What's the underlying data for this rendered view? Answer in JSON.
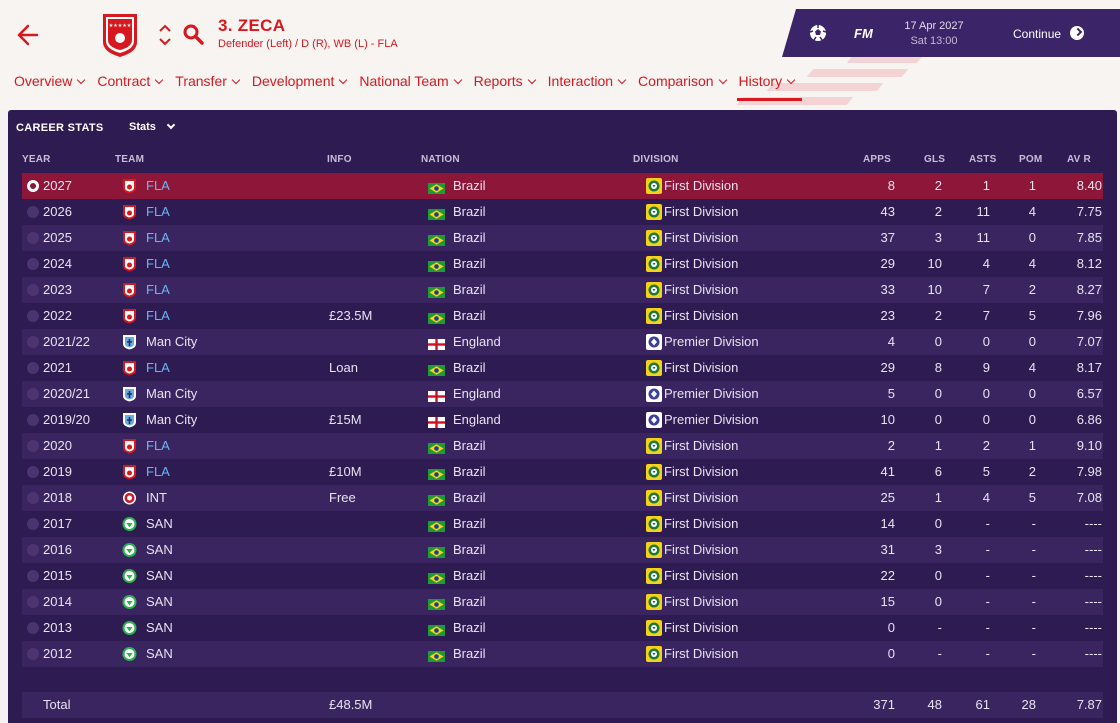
{
  "header": {
    "player_name": "3. ZECA",
    "player_position": "Defender (Left) / D (R), WB (L) - FLA"
  },
  "topbar": {
    "brand": "FM",
    "date": "17 Apr 2027",
    "time": "Sat 13:00",
    "continue_label": "Continue"
  },
  "nav": [
    {
      "label": "Overview"
    },
    {
      "label": "Contract"
    },
    {
      "label": "Transfer"
    },
    {
      "label": "Development"
    },
    {
      "label": "National Team"
    },
    {
      "label": "Reports"
    },
    {
      "label": "Interaction"
    },
    {
      "label": "Comparison"
    },
    {
      "label": "History"
    }
  ],
  "panel": {
    "title": "CAREER STATS",
    "dropdown_label": "Stats"
  },
  "columns": {
    "year": "YEAR",
    "team": "TEAM",
    "info": "INFO",
    "nation": "NATION",
    "division": "DIVISION",
    "apps": "APPS",
    "gls": "GLS",
    "asts": "ASTS",
    "pom": "POM",
    "avr": "AV R"
  },
  "rows": [
    {
      "year": "2027",
      "team": "FLA",
      "info": "",
      "nation": "Brazil",
      "division": "First Division",
      "apps": "8",
      "gls": "2",
      "asts": "1",
      "pom": "1",
      "avr": "8.40"
    },
    {
      "year": "2026",
      "team": "FLA",
      "info": "",
      "nation": "Brazil",
      "division": "First Division",
      "apps": "43",
      "gls": "2",
      "asts": "11",
      "pom": "4",
      "avr": "7.75"
    },
    {
      "year": "2025",
      "team": "FLA",
      "info": "",
      "nation": "Brazil",
      "division": "First Division",
      "apps": "37",
      "gls": "3",
      "asts": "11",
      "pom": "0",
      "avr": "7.85"
    },
    {
      "year": "2024",
      "team": "FLA",
      "info": "",
      "nation": "Brazil",
      "division": "First Division",
      "apps": "29",
      "gls": "10",
      "asts": "4",
      "pom": "4",
      "avr": "8.12"
    },
    {
      "year": "2023",
      "team": "FLA",
      "info": "",
      "nation": "Brazil",
      "division": "First Division",
      "apps": "33",
      "gls": "10",
      "asts": "7",
      "pom": "2",
      "avr": "8.27"
    },
    {
      "year": "2022",
      "team": "FLA",
      "info": "£23.5M",
      "nation": "Brazil",
      "division": "First Division",
      "apps": "23",
      "gls": "2",
      "asts": "7",
      "pom": "5",
      "avr": "7.96"
    },
    {
      "year": "2021/22",
      "team": "Man City",
      "info": "",
      "nation": "England",
      "division": "Premier Division",
      "apps": "4",
      "gls": "0",
      "asts": "0",
      "pom": "0",
      "avr": "7.07"
    },
    {
      "year": "2021",
      "team": "FLA",
      "info": "Loan",
      "nation": "Brazil",
      "division": "First Division",
      "apps": "29",
      "gls": "8",
      "asts": "9",
      "pom": "4",
      "avr": "8.17"
    },
    {
      "year": "2020/21",
      "team": "Man City",
      "info": "",
      "nation": "England",
      "division": "Premier Division",
      "apps": "5",
      "gls": "0",
      "asts": "0",
      "pom": "0",
      "avr": "6.57"
    },
    {
      "year": "2019/20",
      "team": "Man City",
      "info": "£15M",
      "nation": "England",
      "division": "Premier Division",
      "apps": "10",
      "gls": "0",
      "asts": "0",
      "pom": "0",
      "avr": "6.86"
    },
    {
      "year": "2020",
      "team": "FLA",
      "info": "",
      "nation": "Brazil",
      "division": "First Division",
      "apps": "2",
      "gls": "1",
      "asts": "2",
      "pom": "1",
      "avr": "9.10"
    },
    {
      "year": "2019",
      "team": "FLA",
      "info": "£10M",
      "nation": "Brazil",
      "division": "First Division",
      "apps": "41",
      "gls": "6",
      "asts": "5",
      "pom": "2",
      "avr": "7.98"
    },
    {
      "year": "2018",
      "team": "INT",
      "info": "Free",
      "nation": "Brazil",
      "division": "First Division",
      "apps": "25",
      "gls": "1",
      "asts": "4",
      "pom": "5",
      "avr": "7.08"
    },
    {
      "year": "2017",
      "team": "SAN",
      "info": "",
      "nation": "Brazil",
      "division": "First Division",
      "apps": "14",
      "gls": "0",
      "asts": "-",
      "pom": "-",
      "avr": "----"
    },
    {
      "year": "2016",
      "team": "SAN",
      "info": "",
      "nation": "Brazil",
      "division": "First Division",
      "apps": "31",
      "gls": "3",
      "asts": "-",
      "pom": "-",
      "avr": "----"
    },
    {
      "year": "2015",
      "team": "SAN",
      "info": "",
      "nation": "Brazil",
      "division": "First Division",
      "apps": "22",
      "gls": "0",
      "asts": "-",
      "pom": "-",
      "avr": "----"
    },
    {
      "year": "2014",
      "team": "SAN",
      "info": "",
      "nation": "Brazil",
      "division": "First Division",
      "apps": "15",
      "gls": "0",
      "asts": "-",
      "pom": "-",
      "avr": "----"
    },
    {
      "year": "2013",
      "team": "SAN",
      "info": "",
      "nation": "Brazil",
      "division": "First Division",
      "apps": "0",
      "gls": "-",
      "asts": "-",
      "pom": "-",
      "avr": "----"
    },
    {
      "year": "2012",
      "team": "SAN",
      "info": "",
      "nation": "Brazil",
      "division": "First Division",
      "apps": "0",
      "gls": "-",
      "asts": "-",
      "pom": "-",
      "avr": "----"
    }
  ],
  "total": {
    "label": "Total",
    "info": "£48.5M",
    "apps": "371",
    "gls": "48",
    "asts": "61",
    "pom": "28",
    "avr": "7.87"
  },
  "colors": {
    "brand_red": "#d7181e",
    "panel_bg": "#2e1b52",
    "row_alt": "#3b2561",
    "selected_row": "#8d1639",
    "link_blue": "#6cb4f5"
  }
}
